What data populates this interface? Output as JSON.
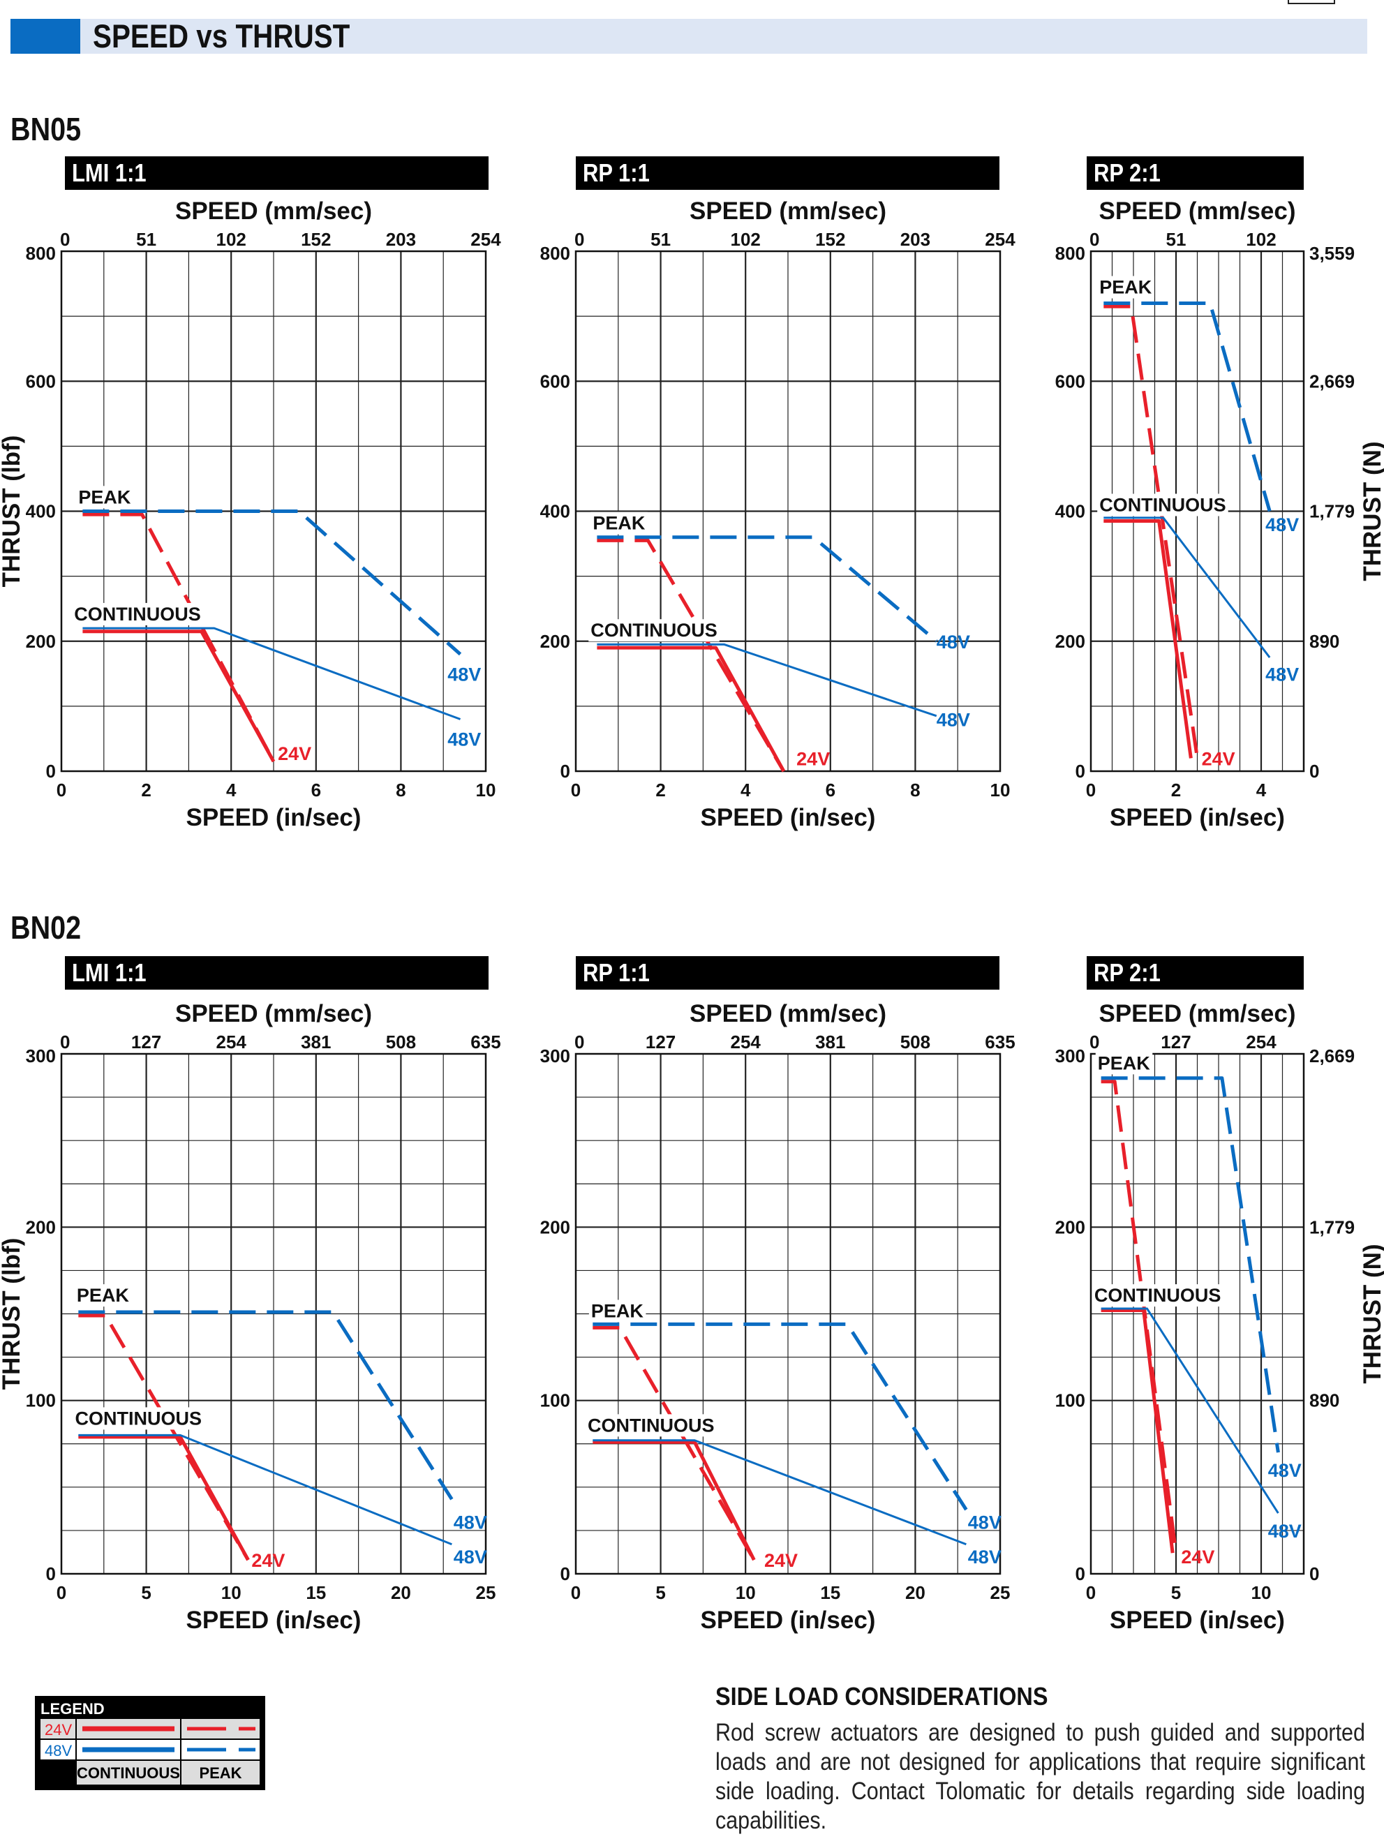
{
  "header": {
    "title": "SPEED vs THRUST"
  },
  "sections": [
    {
      "label": "BN05"
    },
    {
      "label": "BN02"
    }
  ],
  "colors": {
    "v24": "#e8202a",
    "v48": "#0a6cc2",
    "header_blue": "#0a6cc2",
    "header_band": "#dde6f4"
  },
  "chart_data": [
    {
      "type": "line",
      "section": "BN05",
      "title": "LMI 1:1",
      "xlabel": "SPEED (in/sec)",
      "x2label": "SPEED (mm/sec)",
      "ylabel": "THRUST (lbf)",
      "y2label": "",
      "xlim": [
        0,
        10
      ],
      "ylim": [
        0,
        800
      ],
      "xticks": [
        "0",
        "2",
        "4",
        "6",
        "8",
        "10"
      ],
      "xtick_values": [
        0,
        2,
        4,
        6,
        8,
        10
      ],
      "x2ticks": [
        "0",
        "51",
        "102",
        "152",
        "203",
        "254"
      ],
      "yticks": [
        "0",
        "200",
        "400",
        "600",
        "800"
      ],
      "ytick_values": [
        0,
        200,
        400,
        600,
        800
      ],
      "y2ticks": [],
      "grid": {
        "x_minor": 1,
        "y_minor": 100
      },
      "annotations": [
        {
          "text": "PEAK",
          "x": 0.4,
          "y": 412
        },
        {
          "text": "CONTINUOUS",
          "x": 0.3,
          "y": 232
        }
      ],
      "series": [
        {
          "voltage": "24V",
          "type": "peak",
          "points": [
            [
              0.5,
              395
            ],
            [
              1.9,
              395
            ],
            [
              5.0,
              15
            ]
          ],
          "label": "24V",
          "label_pos": [
            5.1,
            28
          ]
        },
        {
          "voltage": "48V",
          "type": "peak",
          "points": [
            [
              0.5,
              400
            ],
            [
              5.6,
              400
            ],
            [
              9.4,
              180
            ]
          ],
          "label": "48V",
          "label_pos": [
            9.1,
            150
          ]
        },
        {
          "voltage": "24V",
          "type": "continuous",
          "points": [
            [
              0.5,
              215
            ],
            [
              3.3,
              215
            ],
            [
              5.0,
              15
            ]
          ]
        },
        {
          "voltage": "48V",
          "type": "continuous",
          "points": [
            [
              0.5,
              220
            ],
            [
              3.6,
              220
            ],
            [
              9.4,
              80
            ]
          ],
          "label": "48V",
          "label_pos": [
            9.1,
            50
          ]
        }
      ]
    },
    {
      "type": "line",
      "section": "BN05",
      "title": "RP 1:1",
      "xlabel": "SPEED (in/sec)",
      "x2label": "SPEED (mm/sec)",
      "ylabel": "",
      "y2label": "",
      "xlim": [
        0,
        10
      ],
      "ylim": [
        0,
        800
      ],
      "xticks": [
        "0",
        "2",
        "4",
        "6",
        "8",
        "10"
      ],
      "xtick_values": [
        0,
        2,
        4,
        6,
        8,
        10
      ],
      "x2ticks": [
        "0",
        "51",
        "102",
        "152",
        "203",
        "254"
      ],
      "yticks": [
        "0",
        "200",
        "400",
        "600",
        "800"
      ],
      "ytick_values": [
        0,
        200,
        400,
        600,
        800
      ],
      "y2ticks": [],
      "grid": {
        "x_minor": 1,
        "y_minor": 100
      },
      "annotations": [
        {
          "text": "PEAK",
          "x": 0.4,
          "y": 372
        },
        {
          "text": "CONTINUOUS",
          "x": 0.35,
          "y": 207
        }
      ],
      "series": [
        {
          "voltage": "24V",
          "type": "peak",
          "points": [
            [
              0.5,
              355
            ],
            [
              1.7,
              355
            ],
            [
              4.9,
              0
            ]
          ],
          "label": "24V",
          "label_pos": [
            5.2,
            20
          ]
        },
        {
          "voltage": "48V",
          "type": "peak",
          "points": [
            [
              0.5,
              360
            ],
            [
              5.6,
              360
            ],
            [
              8.5,
              200
            ]
          ],
          "label": "48V",
          "label_pos": [
            8.5,
            200
          ]
        },
        {
          "voltage": "24V",
          "type": "continuous",
          "points": [
            [
              0.5,
              190
            ],
            [
              3.3,
              190
            ],
            [
              4.9,
              0
            ]
          ]
        },
        {
          "voltage": "48V",
          "type": "continuous",
          "points": [
            [
              0.5,
              195
            ],
            [
              3.5,
              195
            ],
            [
              8.5,
              85
            ]
          ],
          "label": "48V",
          "label_pos": [
            8.5,
            80
          ]
        }
      ]
    },
    {
      "type": "line",
      "section": "BN05",
      "title": "RP 2:1",
      "xlabel": "SPEED (in/sec)",
      "x2label": "SPEED (mm/sec)",
      "ylabel": "",
      "y2label": "THRUST (N)",
      "xlim": [
        0,
        5
      ],
      "ylim": [
        0,
        800
      ],
      "xticks": [
        "0",
        "2",
        "4"
      ],
      "xtick_values": [
        0,
        2,
        4
      ],
      "x2ticks": [
        "0",
        "51",
        "102"
      ],
      "x2tick_values": [
        0,
        2,
        4
      ],
      "yticks": [
        "0",
        "200",
        "400",
        "600",
        "800"
      ],
      "ytick_values": [
        0,
        200,
        400,
        600,
        800
      ],
      "y2ticks": [
        "0",
        "890",
        "1,779",
        "2,669",
        "3,559"
      ],
      "grid": {
        "x_minor": 0.5,
        "y_minor": 100
      },
      "annotations": [
        {
          "text": "PEAK",
          "x": 0.2,
          "y": 735
        },
        {
          "text": "CONTINUOUS",
          "x": 0.2,
          "y": 400
        }
      ],
      "series": [
        {
          "voltage": "24V",
          "type": "peak",
          "points": [
            [
              0.3,
              715
            ],
            [
              0.95,
              715
            ],
            [
              2.5,
              20
            ]
          ],
          "label": "24V",
          "label_pos": [
            2.6,
            20
          ]
        },
        {
          "voltage": "48V",
          "type": "peak",
          "points": [
            [
              0.3,
              720
            ],
            [
              2.8,
              720
            ],
            [
              4.2,
              400
            ]
          ],
          "label": "48V",
          "label_pos": [
            4.1,
            380
          ]
        },
        {
          "voltage": "24V",
          "type": "continuous",
          "points": [
            [
              0.3,
              385
            ],
            [
              1.6,
              385
            ],
            [
              2.35,
              20
            ]
          ]
        },
        {
          "voltage": "48V",
          "type": "continuous",
          "points": [
            [
              0.3,
              390
            ],
            [
              1.7,
              390
            ],
            [
              4.2,
              175
            ]
          ],
          "label": "48V",
          "label_pos": [
            4.1,
            150
          ]
        }
      ]
    },
    {
      "type": "line",
      "section": "BN02",
      "title": "LMI 1:1",
      "xlabel": "SPEED (in/sec)",
      "x2label": "SPEED (mm/sec)",
      "ylabel": "THRUST (lbf)",
      "y2label": "",
      "xlim": [
        0,
        25
      ],
      "ylim": [
        0,
        300
      ],
      "xticks": [
        "0",
        "5",
        "10",
        "15",
        "20",
        "25"
      ],
      "xtick_values": [
        0,
        5,
        10,
        15,
        20,
        25
      ],
      "x2ticks": [
        "0",
        "127",
        "254",
        "381",
        "508",
        "635"
      ],
      "yticks": [
        "0",
        "100",
        "200",
        "300"
      ],
      "ytick_values": [
        0,
        100,
        200,
        300
      ],
      "y2ticks": [],
      "grid": {
        "x_minor": 2.5,
        "y_minor": 25
      },
      "annotations": [
        {
          "text": "PEAK",
          "x": 0.9,
          "y": 157
        },
        {
          "text": "CONTINUOUS",
          "x": 0.8,
          "y": 86
        }
      ],
      "series": [
        {
          "voltage": "24V",
          "type": "peak",
          "points": [
            [
              1,
              149
            ],
            [
              2.6,
              149
            ],
            [
              11,
              8
            ]
          ],
          "label": "24V",
          "label_pos": [
            11.2,
            8
          ]
        },
        {
          "voltage": "48V",
          "type": "peak",
          "points": [
            [
              1,
              151
            ],
            [
              16,
              151
            ],
            [
              23,
              43
            ]
          ],
          "label": "48V",
          "label_pos": [
            23.1,
            30
          ]
        },
        {
          "voltage": "24V",
          "type": "continuous",
          "points": [
            [
              1,
              79
            ],
            [
              7,
              79
            ],
            [
              11,
              8
            ]
          ]
        },
        {
          "voltage": "48V",
          "type": "continuous",
          "points": [
            [
              1,
              80
            ],
            [
              7,
              80
            ],
            [
              23,
              17
            ]
          ],
          "label": "48V",
          "label_pos": [
            23.1,
            10
          ]
        }
      ]
    },
    {
      "type": "line",
      "section": "BN02",
      "title": "RP 1:1",
      "xlabel": "SPEED (in/sec)",
      "x2label": "SPEED (mm/sec)",
      "ylabel": "",
      "y2label": "",
      "xlim": [
        0,
        25
      ],
      "ylim": [
        0,
        300
      ],
      "xticks": [
        "0",
        "5",
        "10",
        "15",
        "20",
        "25"
      ],
      "xtick_values": [
        0,
        5,
        10,
        15,
        20,
        25
      ],
      "x2ticks": [
        "0",
        "127",
        "254",
        "381",
        "508",
        "635"
      ],
      "yticks": [
        "0",
        "100",
        "200",
        "300"
      ],
      "ytick_values": [
        0,
        100,
        200,
        300
      ],
      "y2ticks": [],
      "grid": {
        "x_minor": 2.5,
        "y_minor": 25
      },
      "annotations": [
        {
          "text": "PEAK",
          "x": 0.9,
          "y": 148
        },
        {
          "text": "CONTINUOUS",
          "x": 0.7,
          "y": 82
        }
      ],
      "series": [
        {
          "voltage": "24V",
          "type": "peak",
          "points": [
            [
              1,
              142
            ],
            [
              2.6,
              142
            ],
            [
              10.5,
              8
            ]
          ],
          "label": "24V",
          "label_pos": [
            11.1,
            8
          ]
        },
        {
          "voltage": "48V",
          "type": "peak",
          "points": [
            [
              1,
              144
            ],
            [
              16,
              144
            ],
            [
              23,
              37
            ]
          ],
          "label": "48V",
          "label_pos": [
            23.1,
            30
          ]
        },
        {
          "voltage": "24V",
          "type": "continuous",
          "points": [
            [
              1,
              76
            ],
            [
              7,
              76
            ],
            [
              10.5,
              8
            ]
          ]
        },
        {
          "voltage": "48V",
          "type": "continuous",
          "points": [
            [
              1,
              77
            ],
            [
              7,
              77
            ],
            [
              23,
              17
            ]
          ],
          "label": "48V",
          "label_pos": [
            23.1,
            10
          ]
        }
      ]
    },
    {
      "type": "line",
      "section": "BN02",
      "title": "RP 2:1",
      "xlabel": "SPEED (in/sec)",
      "x2label": "SPEED (mm/sec)",
      "ylabel": "",
      "y2label": "THRUST (N)",
      "xlim": [
        0,
        12.5
      ],
      "ylim": [
        0,
        300
      ],
      "xticks": [
        "0",
        "5",
        "10"
      ],
      "xtick_values": [
        0,
        5,
        10
      ],
      "x2ticks": [
        "0",
        "127",
        "254"
      ],
      "x2tick_values": [
        0,
        5,
        10
      ],
      "yticks": [
        "0",
        "100",
        "200",
        "300"
      ],
      "ytick_values": [
        0,
        100,
        200,
        300
      ],
      "y2ticks": [
        "0",
        "890",
        "1,779",
        "2,669"
      ],
      "grid": {
        "x_minor": 1.25,
        "y_minor": 25
      },
      "annotations": [
        {
          "text": "PEAK",
          "x": 0.4,
          "y": 291
        },
        {
          "text": "CONTINUOUS",
          "x": 0.2,
          "y": 157
        }
      ],
      "series": [
        {
          "voltage": "24V",
          "type": "peak",
          "points": [
            [
              0.6,
              284
            ],
            [
              1.4,
              284
            ],
            [
              5.0,
              12
            ]
          ],
          "label": "24V",
          "label_pos": [
            5.3,
            10
          ]
        },
        {
          "voltage": "48V",
          "type": "peak",
          "points": [
            [
              0.6,
              286
            ],
            [
              7.7,
              286
            ],
            [
              11.0,
              70
            ]
          ],
          "label": "48V",
          "label_pos": [
            10.4,
            60
          ]
        },
        {
          "voltage": "24V",
          "type": "continuous",
          "points": [
            [
              0.6,
              152
            ],
            [
              3.1,
              152
            ],
            [
              4.8,
              12
            ]
          ]
        },
        {
          "voltage": "48V",
          "type": "continuous",
          "points": [
            [
              0.6,
              153
            ],
            [
              3.3,
              153
            ],
            [
              11.0,
              35
            ]
          ],
          "label": "48V",
          "label_pos": [
            10.4,
            25
          ]
        }
      ]
    }
  ],
  "legend": {
    "title": "LEGEND",
    "row_24v": "24V",
    "row_48v": "48V",
    "col_continuous": "CONTINUOUS",
    "col_peak": "PEAK"
  },
  "side_load": {
    "title": "SIDE LOAD CONSIDERATIONS",
    "text": "Rod screw actuators are designed to push guided and supported loads and are not designed for applications that require significant side loading. Contact Tolomatic for details regarding side loading capabilities."
  }
}
